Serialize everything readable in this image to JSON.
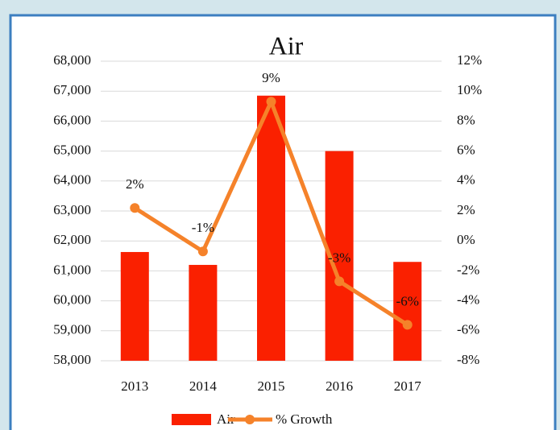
{
  "chart_data": {
    "type": "bar_line",
    "title": "Air",
    "categories": [
      "2013",
      "2014",
      "2015",
      "2016",
      "2017"
    ],
    "series": [
      {
        "name": "Air",
        "type": "bar",
        "color": "#fa2000",
        "values": [
          61630,
          61200,
          66850,
          65000,
          61300
        ]
      },
      {
        "name": "% Growth",
        "type": "line",
        "axis": "y2",
        "color": "#f5822a",
        "values": [
          2.2,
          -0.7,
          9.3,
          -2.7,
          -5.6
        ],
        "value_labels": [
          "2%",
          "-1%",
          "9%",
          "-3%",
          "-6%"
        ]
      }
    ],
    "ylim": [
      58000,
      68000
    ],
    "yticks": [
      {
        "value": 58000,
        "label": "58,000"
      },
      {
        "value": 59000,
        "label": "59,000"
      },
      {
        "value": 60000,
        "label": "60,000"
      },
      {
        "value": 61000,
        "label": "61,000"
      },
      {
        "value": 62000,
        "label": "62,000"
      },
      {
        "value": 63000,
        "label": "63,000"
      },
      {
        "value": 64000,
        "label": "64,000"
      },
      {
        "value": 65000,
        "label": "65,000"
      },
      {
        "value": 66000,
        "label": "66,000"
      },
      {
        "value": 67000,
        "label": "67,000"
      },
      {
        "value": 68000,
        "label": "68,000"
      }
    ],
    "y2lim": [
      -8,
      12
    ],
    "y2ticks": [
      {
        "value": -8,
        "label": "-8%"
      },
      {
        "value": -6,
        "label": "-6%"
      },
      {
        "value": -4,
        "label": "-4%"
      },
      {
        "value": -2,
        "label": "-2%"
      },
      {
        "value": 0,
        "label": "0%"
      },
      {
        "value": 2,
        "label": "2%"
      },
      {
        "value": 4,
        "label": "4%"
      },
      {
        "value": 6,
        "label": "6%"
      },
      {
        "value": 8,
        "label": "8%"
      },
      {
        "value": 10,
        "label": "10%"
      },
      {
        "value": 12,
        "label": "12%"
      }
    ],
    "grid": true,
    "legend": "bottom"
  }
}
